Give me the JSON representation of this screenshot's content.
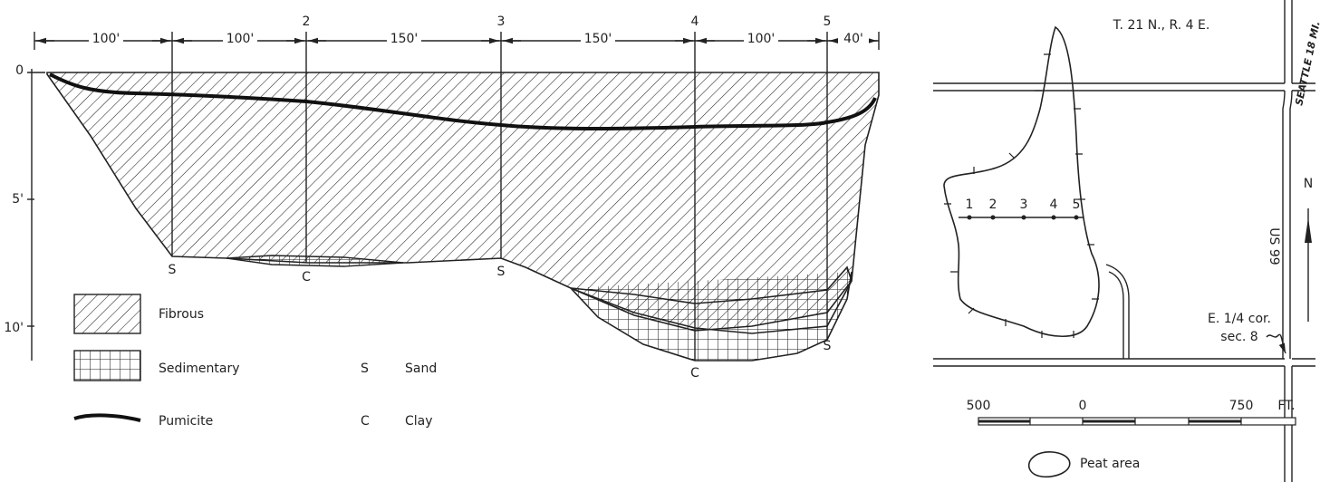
{
  "section": {
    "distances": [
      "100'",
      "100'",
      "150'",
      "150'",
      "100'",
      "40'"
    ],
    "stations": [
      "2",
      "3",
      "4",
      "5"
    ],
    "depths": [
      "0",
      "5'",
      "10'"
    ],
    "bottom_labels": [
      "S",
      "C",
      "S",
      "C",
      "S"
    ]
  },
  "legend": {
    "fibrous": "Fibrous",
    "sedimentary": "Sedimentary",
    "pumicite": "Pumicite",
    "sand_symbol": "S",
    "sand": "Sand",
    "clay_symbol": "C",
    "clay": "Clay"
  },
  "map": {
    "township": "T. 21 N., R. 4 E.",
    "highway_sign": "SEATTLE 18 MI.",
    "stations": [
      "1",
      "2",
      "3",
      "4",
      "5"
    ],
    "route": "US 99",
    "north": "N",
    "corner": [
      "E. 1/4 cor.",
      "sec. 8"
    ],
    "scale": [
      "500",
      "0",
      "750",
      "FT."
    ],
    "peat_legend": "Peat area"
  }
}
